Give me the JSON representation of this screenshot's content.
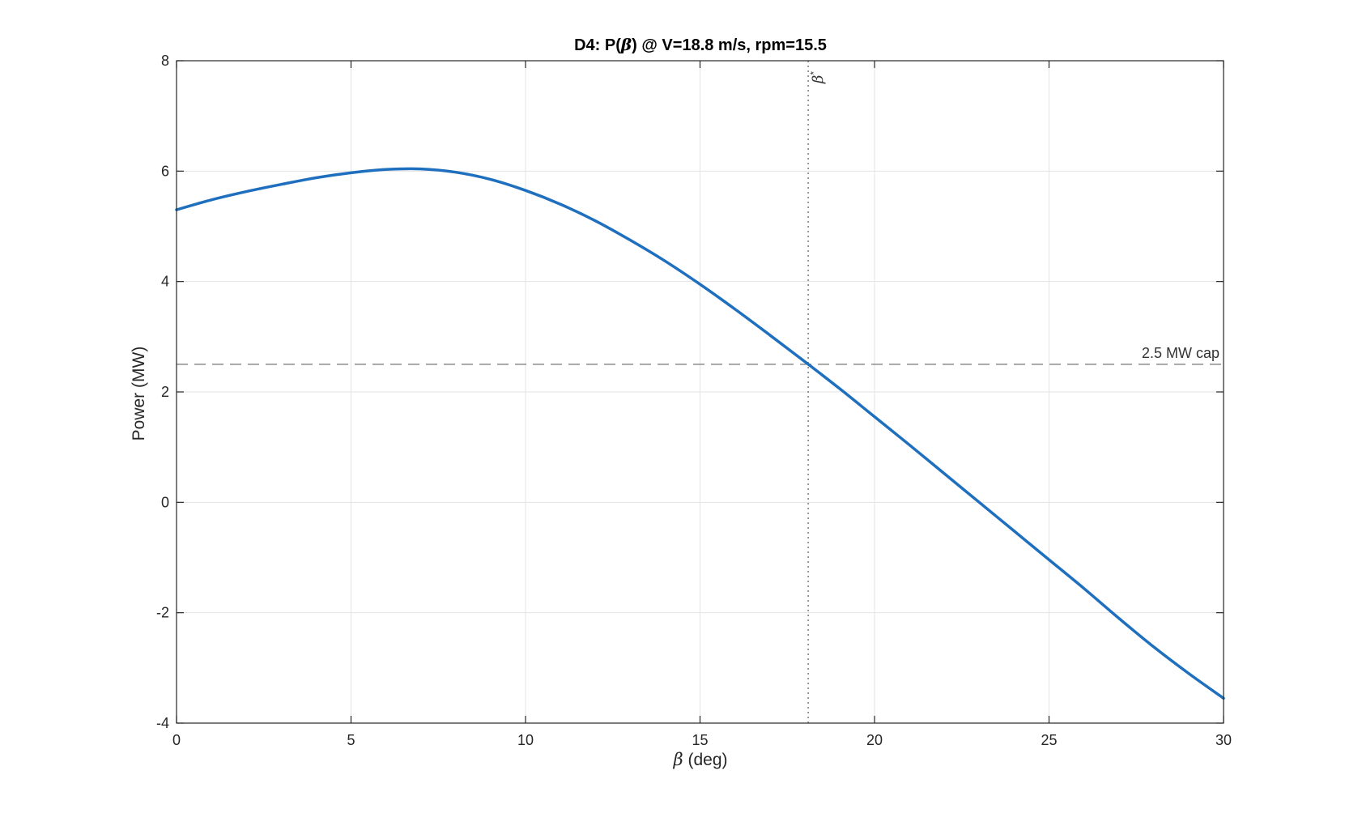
{
  "chart_data": {
    "type": "line",
    "title": "D4:  P(β)  @  V=18.8  m/s,  rpm=15.5",
    "title_parts": {
      "prefix": "D4:  P(",
      "greek": "β",
      "suffix": ")  @  V=18.8  m/s,  rpm=15.5"
    },
    "xlabel": "β  (deg)",
    "xlabel_parts": {
      "greek": "β",
      "rest": "  (deg)"
    },
    "ylabel": "Power (MW)",
    "xlim": [
      0,
      30
    ],
    "ylim": [
      -4,
      8
    ],
    "xticks": [
      0,
      5,
      10,
      15,
      20,
      25,
      30
    ],
    "yticks": [
      -4,
      -2,
      0,
      2,
      4,
      6,
      8
    ],
    "grid": true,
    "series": [
      {
        "color": "#1f6fbf",
        "x": [
          0,
          1,
          2,
          3,
          4,
          5,
          6,
          7,
          8,
          9,
          10,
          11,
          12,
          13,
          14,
          15,
          16,
          17,
          18,
          19,
          20,
          21,
          22,
          23,
          24,
          25,
          26,
          27,
          28,
          29,
          30
        ],
        "y": [
          5.3,
          5.48,
          5.63,
          5.76,
          5.88,
          5.97,
          6.03,
          6.04,
          5.98,
          5.85,
          5.65,
          5.4,
          5.1,
          4.75,
          4.37,
          3.95,
          3.5,
          3.03,
          2.55,
          2.06,
          1.55,
          1.04,
          0.52,
          0.0,
          -0.52,
          -1.04,
          -1.56,
          -2.1,
          -2.62,
          -3.1,
          -3.55
        ]
      }
    ],
    "reference_lines": {
      "horizontal": {
        "y": 2.5,
        "label": "2.5 MW cap",
        "color": "#8c8c8c"
      },
      "vertical": {
        "x": 18.1,
        "label_greek": "β",
        "label_sup": "*",
        "color": "#7a7a7a"
      }
    }
  }
}
